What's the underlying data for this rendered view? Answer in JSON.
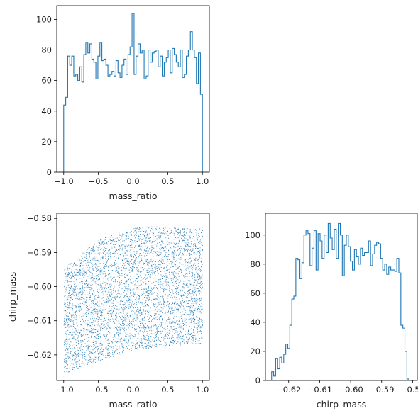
{
  "chart_data": [
    {
      "type": "histogram",
      "xlabel": "mass_ratio",
      "ylabel": "",
      "xlim": [
        -1.1,
        1.1
      ],
      "ylim": [
        0,
        109
      ],
      "xticks": [
        -1.0,
        -0.5,
        0.0,
        0.5,
        1.0
      ],
      "xtick_labels": [
        "−1.0",
        "−0.5",
        "0.0",
        "0.5",
        "1.0"
      ],
      "yticks": [
        0,
        20,
        40,
        60,
        80,
        100
      ],
      "ytick_labels": [
        "0",
        "20",
        "40",
        "60",
        "80",
        "100"
      ],
      "color": "#1f77b4",
      "bin_range": [
        -1.0,
        1.0
      ],
      "counts": [
        44,
        49,
        76,
        70,
        76,
        63,
        64,
        60,
        69,
        59,
        77,
        85,
        78,
        84,
        74,
        72,
        61,
        76,
        85,
        73,
        74,
        70,
        63,
        64,
        66,
        63,
        73,
        65,
        62,
        70,
        74,
        64,
        77,
        82,
        104,
        64,
        76,
        84,
        78,
        80,
        61,
        63,
        80,
        72,
        78,
        79,
        80,
        69,
        76,
        63,
        72,
        75,
        80,
        65,
        81,
        77,
        72,
        69,
        80,
        62,
        64,
        76,
        80,
        92,
        80,
        75,
        58,
        78,
        51
      ]
    },
    {
      "type": "scatter",
      "xlabel": "mass_ratio",
      "ylabel": "chirp_mass",
      "xlim": [
        -1.1,
        1.1
      ],
      "ylim": [
        -0.6275,
        -0.5785
      ],
      "xticks": [
        -1.0,
        -0.5,
        0.0,
        0.5,
        1.0
      ],
      "xtick_labels": [
        "−1.0",
        "−0.5",
        "0.0",
        "0.5",
        "1.0"
      ],
      "yticks": [
        -0.62,
        -0.61,
        -0.6,
        -0.59,
        -0.58
      ],
      "ytick_labels": [
        "−0.62",
        "−0.61",
        "−0.60",
        "−0.59",
        "−0.58"
      ],
      "color": "#1f77b4",
      "points_shown": "approx. 5000 uniformly scattered points",
      "region": {
        "x_range": [
          -1.0,
          1.0
        ],
        "upper_bound": {
          "x": [
            -1.0,
            -0.5,
            0.0,
            0.25,
            0.5,
            1.0
          ],
          "y": [
            -0.5945,
            -0.5862,
            -0.5828,
            -0.5822,
            -0.5826,
            -0.583
          ]
        },
        "lower_bound": {
          "x": [
            -1.0,
            -0.5,
            0.0,
            0.5,
            1.0
          ],
          "y": [
            -0.6255,
            -0.6218,
            -0.6185,
            -0.6172,
            -0.6167
          ]
        }
      }
    },
    {
      "type": "histogram",
      "xlabel": "chirp_mass",
      "ylabel": "",
      "xlim": [
        -0.6275,
        -0.5785
      ],
      "ylim": [
        0,
        115
      ],
      "xticks": [
        -0.62,
        -0.61,
        -0.6,
        -0.59,
        -0.58
      ],
      "xtick_labels": [
        "−0.62",
        "−0.61",
        "−0.60",
        "−0.59",
        "−0.58"
      ],
      "yticks": [
        0,
        20,
        40,
        60,
        80,
        100
      ],
      "ytick_labels": [
        "0",
        "20",
        "40",
        "60",
        "80",
        "100"
      ],
      "color": "#1f77b4",
      "bin_range": [
        -0.6255,
        -0.5812
      ],
      "counts": [
        6,
        3,
        15,
        8,
        16,
        12,
        18,
        25,
        22,
        38,
        56,
        58,
        84,
        83,
        70,
        81,
        100,
        103,
        101,
        79,
        91,
        103,
        76,
        101,
        96,
        84,
        100,
        88,
        108,
        98,
        90,
        104,
        84,
        108,
        100,
        72,
        93,
        100,
        92,
        82,
        76,
        90,
        85,
        80,
        91,
        86,
        88,
        88,
        96,
        79,
        87,
        93,
        95,
        94,
        84,
        76,
        80,
        73,
        78,
        76,
        76,
        75,
        84,
        74,
        38,
        36,
        20,
        1
      ]
    }
  ]
}
